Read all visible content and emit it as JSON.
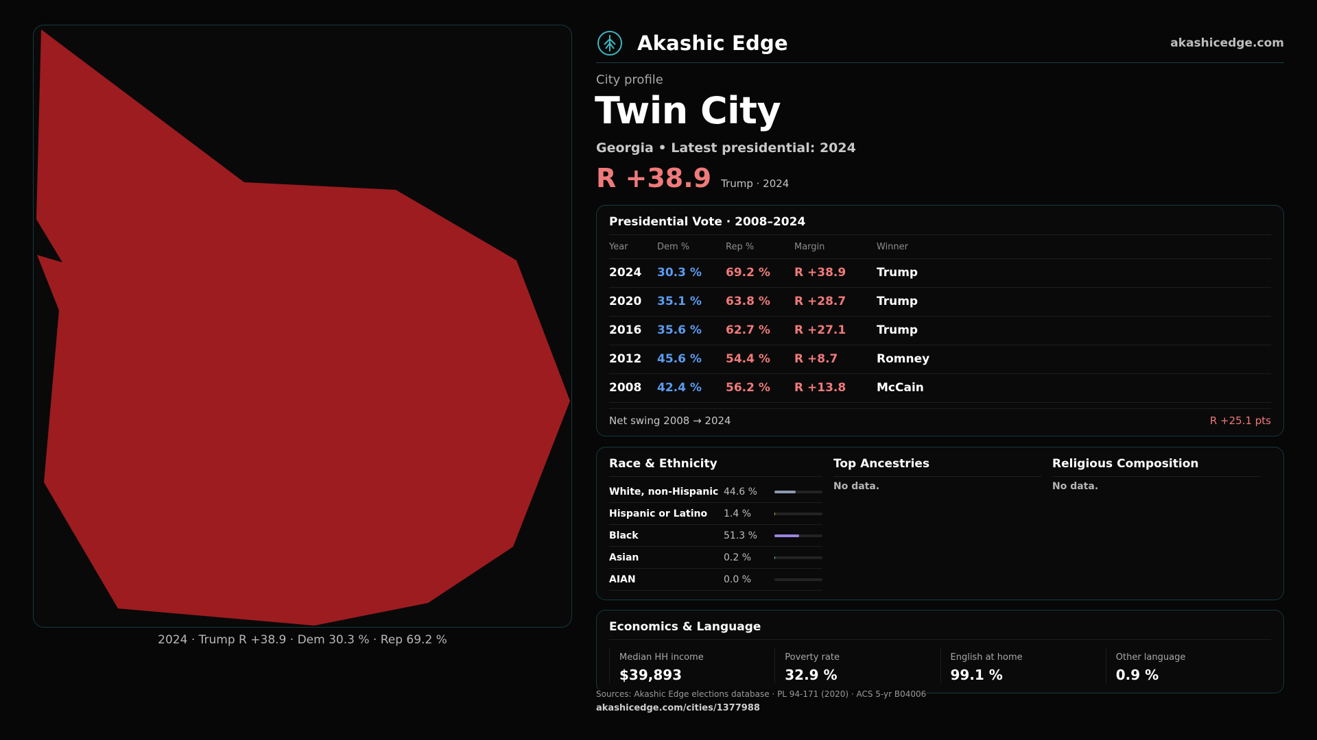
{
  "brand": {
    "name": "Akashic Edge",
    "site": "akashicedge.com",
    "logo_icon": "tree-icon"
  },
  "map": {
    "caption": "2024 · Trump R +38.9 · Dem 30.3 % · Rep 69.2 %",
    "fill_color": "#9c1c20"
  },
  "profile": {
    "kicker": "City profile",
    "city": "Twin City",
    "subline": "Georgia • Latest presidential: 2024",
    "margin": "R +38.9",
    "margin_note": "Trump · 2024"
  },
  "presidential": {
    "title": "Presidential Vote · 2008–2024",
    "headers": [
      "Year",
      "Dem %",
      "Rep %",
      "Margin",
      "Winner"
    ],
    "rows": [
      {
        "year": "2024",
        "dem": "30.3 %",
        "rep": "69.2 %",
        "margin": "R +38.9",
        "winner": "Trump"
      },
      {
        "year": "2020",
        "dem": "35.1 %",
        "rep": "63.8 %",
        "margin": "R +28.7",
        "winner": "Trump"
      },
      {
        "year": "2016",
        "dem": "35.6 %",
        "rep": "62.7 %",
        "margin": "R +27.1",
        "winner": "Trump"
      },
      {
        "year": "2012",
        "dem": "45.6 %",
        "rep": "54.4 %",
        "margin": "R +8.7",
        "winner": "Romney"
      },
      {
        "year": "2008",
        "dem": "42.4 %",
        "rep": "56.2 %",
        "margin": "R +13.8",
        "winner": "McCain"
      }
    ],
    "swing_label": "Net swing 2008 → 2024",
    "swing_value": "R +25.1 pts"
  },
  "race": {
    "title": "Race & Ethnicity",
    "rows": [
      {
        "name": "White, non-Hispanic",
        "pct": "44.6 %",
        "value": 44.6,
        "color": "#8e9ab0"
      },
      {
        "name": "Hispanic or Latino",
        "pct": "1.4 %",
        "value": 1.4,
        "color": "#d6a14a"
      },
      {
        "name": "Black",
        "pct": "51.3 %",
        "value": 51.3,
        "color": "#9b84e0"
      },
      {
        "name": "Asian",
        "pct": "0.2 %",
        "value": 0.2,
        "color": "#5fb0a0"
      },
      {
        "name": "AIAN",
        "pct": "0.0 %",
        "value": 0.0,
        "color": "#a0a0a0"
      }
    ]
  },
  "ancestries": {
    "title": "Top Ancestries",
    "empty": "No data."
  },
  "religion": {
    "title": "Religious Composition",
    "empty": "No data."
  },
  "economics": {
    "title": "Economics & Language",
    "items": [
      {
        "label": "Median HH income",
        "value": "$39,893"
      },
      {
        "label": "Poverty rate",
        "value": "32.9 %"
      },
      {
        "label": "English at home",
        "value": "99.1 %"
      },
      {
        "label": "Other language",
        "value": "0.9 %"
      }
    ]
  },
  "footer": {
    "sources": "Sources: Akashic Edge elections database · PL 94-171 (2020) · ACS 5-yr B04006",
    "url": "akashicedge.com/cities/1377988"
  }
}
